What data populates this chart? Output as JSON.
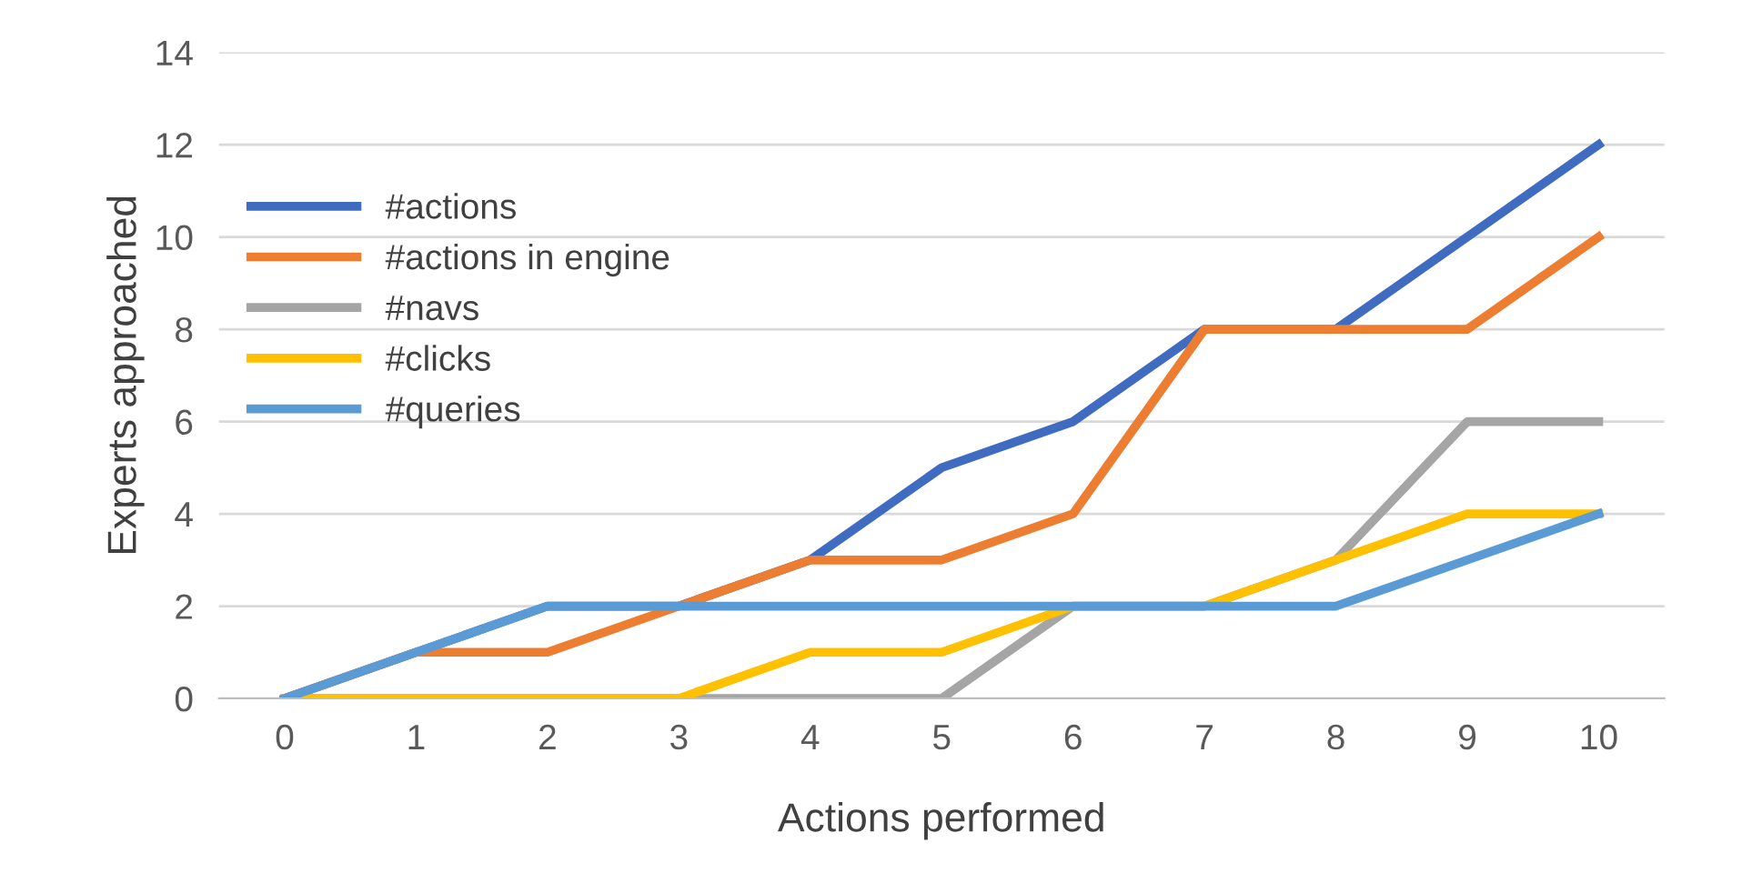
{
  "chart_data": {
    "type": "line",
    "xlabel": "Actions performed",
    "ylabel": "Experts approached",
    "categories": [
      "0",
      "1",
      "2",
      "3",
      "4",
      "5",
      "6",
      "7",
      "8",
      "9",
      "10"
    ],
    "series": [
      {
        "name": "#actions",
        "color": "#3f6cc0",
        "values": [
          0,
          1,
          2,
          2,
          3,
          5,
          6,
          8,
          8,
          10,
          12
        ]
      },
      {
        "name": "#actions in engine",
        "color": "#ed7d31",
        "values": [
          0,
          1,
          1,
          2,
          3,
          3,
          4,
          8,
          8,
          8,
          10
        ]
      },
      {
        "name": "#navs",
        "color": "#a5a5a5",
        "values": [
          0,
          0,
          0,
          0,
          0,
          0,
          2,
          2,
          3,
          6,
          6
        ]
      },
      {
        "name": "#clicks",
        "color": "#ffc000",
        "values": [
          0,
          0,
          0,
          0,
          1,
          1,
          2,
          2,
          3,
          4,
          4
        ]
      },
      {
        "name": "#queries",
        "color": "#5b9bd5",
        "values": [
          0,
          1,
          2,
          2,
          2,
          2,
          2,
          2,
          2,
          3,
          4
        ]
      }
    ],
    "ylim": [
      0,
      14
    ],
    "yticks": [
      0,
      2,
      4,
      6,
      8,
      10,
      12,
      14
    ],
    "grid": "y",
    "legend": "left",
    "marker": "none",
    "line_style": "solid"
  }
}
